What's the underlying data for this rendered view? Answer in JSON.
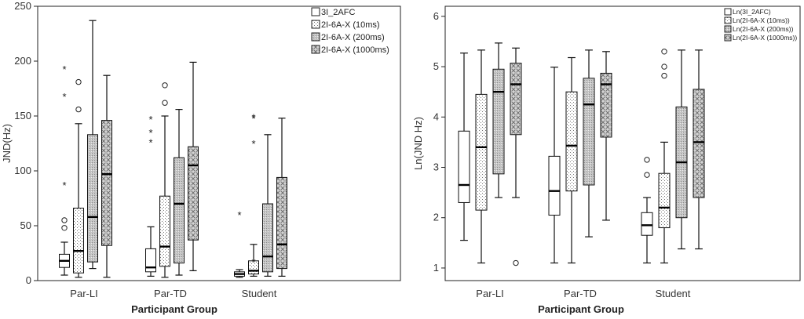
{
  "chart_data": [
    {
      "type": "boxplot",
      "title": "",
      "xlabel": "Participant Group",
      "ylabel": "JND(Hz)",
      "ylim": [
        0,
        250
      ],
      "yticks": [
        0,
        50,
        100,
        150,
        200,
        250
      ],
      "categories": [
        "Par-LI",
        "Par-TD",
        "Student"
      ],
      "legend_position": "right",
      "series": [
        {
          "name": "3I_2AFC",
          "pattern": "plain",
          "boxes": [
            {
              "min": 5,
              "q1": 12,
              "median": 18,
              "q3": 24,
              "max": 35,
              "outliers": [
                48,
                55
              ],
              "extremes": [
                87,
                168,
                193
              ]
            },
            {
              "min": 4,
              "q1": 8,
              "median": 12,
              "q3": 29,
              "max": 49,
              "outliers": [],
              "extremes": [
                126,
                135,
                147
              ]
            },
            {
              "min": 3,
              "q1": 4,
              "median": 6,
              "q3": 8,
              "max": 10,
              "outliers": [],
              "extremes": [
                60
              ]
            }
          ]
        },
        {
          "name": "2I-6A-X (10ms)",
          "pattern": "dots",
          "boxes": [
            {
              "min": 3,
              "q1": 7,
              "median": 27,
              "q3": 66,
              "max": 143,
              "outliers": [
                156,
                181
              ],
              "extremes": []
            },
            {
              "min": 3,
              "q1": 13,
              "median": 31,
              "q3": 77,
              "max": 150,
              "outliers": [
                162,
                178
              ],
              "extremes": []
            },
            {
              "min": 4,
              "q1": 6,
              "median": 9,
              "q3": 18,
              "max": 33,
              "outliers": [],
              "extremes": [
                17,
                125,
                148,
                149
              ]
            }
          ]
        },
        {
          "name": "2I-6A-X (200ms)",
          "pattern": "grid",
          "boxes": [
            {
              "min": 11,
              "q1": 17,
              "median": 58,
              "q3": 133,
              "max": 237,
              "outliers": [],
              "extremes": []
            },
            {
              "min": 5,
              "q1": 16,
              "median": 70,
              "q3": 112,
              "max": 156,
              "outliers": [],
              "extremes": []
            },
            {
              "min": 4,
              "q1": 8,
              "median": 22,
              "q3": 70,
              "max": 133,
              "outliers": [],
              "extremes": []
            }
          ]
        },
        {
          "name": "2I-6A-X (1000ms)",
          "pattern": "cross",
          "boxes": [
            {
              "min": 3,
              "q1": 32,
              "median": 97,
              "q3": 146,
              "max": 187,
              "outliers": [],
              "extremes": []
            },
            {
              "min": 9,
              "q1": 37,
              "median": 105,
              "q3": 122,
              "max": 199,
              "outliers": [],
              "extremes": []
            },
            {
              "min": 4,
              "q1": 11,
              "median": 33,
              "q3": 94,
              "max": 148,
              "outliers": [],
              "extremes": []
            }
          ]
        }
      ]
    },
    {
      "type": "boxplot",
      "title": "",
      "xlabel": "Participant Group",
      "ylabel": "Ln(JND Hz)",
      "ylim": [
        0.75,
        6.2
      ],
      "yticks": [
        1,
        2,
        3,
        4,
        5,
        6
      ],
      "categories": [
        "Par-LI",
        "Par-TD",
        "Student"
      ],
      "legend_position": "right",
      "series": [
        {
          "name": "Ln(3I_2AFC)",
          "pattern": "plain",
          "boxes": [
            {
              "min": 1.55,
              "q1": 2.3,
              "median": 2.65,
              "q3": 3.72,
              "max": 5.27,
              "outliers": [],
              "extremes": []
            },
            {
              "min": 1.1,
              "q1": 2.05,
              "median": 2.53,
              "q3": 3.22,
              "max": 4.99,
              "outliers": [],
              "extremes": []
            },
            {
              "min": 1.1,
              "q1": 1.65,
              "median": 1.85,
              "q3": 2.1,
              "max": 2.4,
              "outliers": [
                2.85,
                3.15
              ],
              "extremes": []
            }
          ]
        },
        {
          "name": "Ln(2I-6A-X (10ms))",
          "pattern": "dots",
          "boxes": [
            {
              "min": 1.1,
              "q1": 2.15,
              "median": 3.4,
              "q3": 4.45,
              "max": 5.33,
              "outliers": [],
              "extremes": []
            },
            {
              "min": 1.1,
              "q1": 2.53,
              "median": 3.43,
              "q3": 4.5,
              "max": 5.18,
              "outliers": [],
              "extremes": []
            },
            {
              "min": 1.1,
              "q1": 1.8,
              "median": 2.2,
              "q3": 2.88,
              "max": 3.5,
              "outliers": [
                4.82,
                5.0,
                5.3
              ],
              "extremes": []
            }
          ]
        },
        {
          "name": "Ln(2I-6A-X (200ms))",
          "pattern": "grid",
          "boxes": [
            {
              "min": 2.4,
              "q1": 2.87,
              "median": 4.5,
              "q3": 4.95,
              "max": 5.47,
              "outliers": [],
              "extremes": []
            },
            {
              "min": 1.62,
              "q1": 2.65,
              "median": 4.25,
              "q3": 4.77,
              "max": 5.33,
              "outliers": [],
              "extremes": []
            },
            {
              "min": 1.38,
              "q1": 2.0,
              "median": 3.1,
              "q3": 4.2,
              "max": 5.33,
              "outliers": [],
              "extremes": []
            }
          ]
        },
        {
          "name": "Ln(2I-6A-X (1000ms))",
          "pattern": "cross",
          "boxes": [
            {
              "min": 2.4,
              "q1": 3.65,
              "median": 4.65,
              "q3": 5.07,
              "max": 5.37,
              "outliers": [
                1.1
              ],
              "extremes": []
            },
            {
              "min": 1.95,
              "q1": 3.6,
              "median": 4.65,
              "q3": 4.87,
              "max": 5.3,
              "outliers": [],
              "extremes": []
            },
            {
              "min": 1.38,
              "q1": 2.4,
              "median": 3.5,
              "q3": 4.55,
              "max": 5.33,
              "outliers": [],
              "extremes": []
            }
          ]
        }
      ]
    }
  ]
}
